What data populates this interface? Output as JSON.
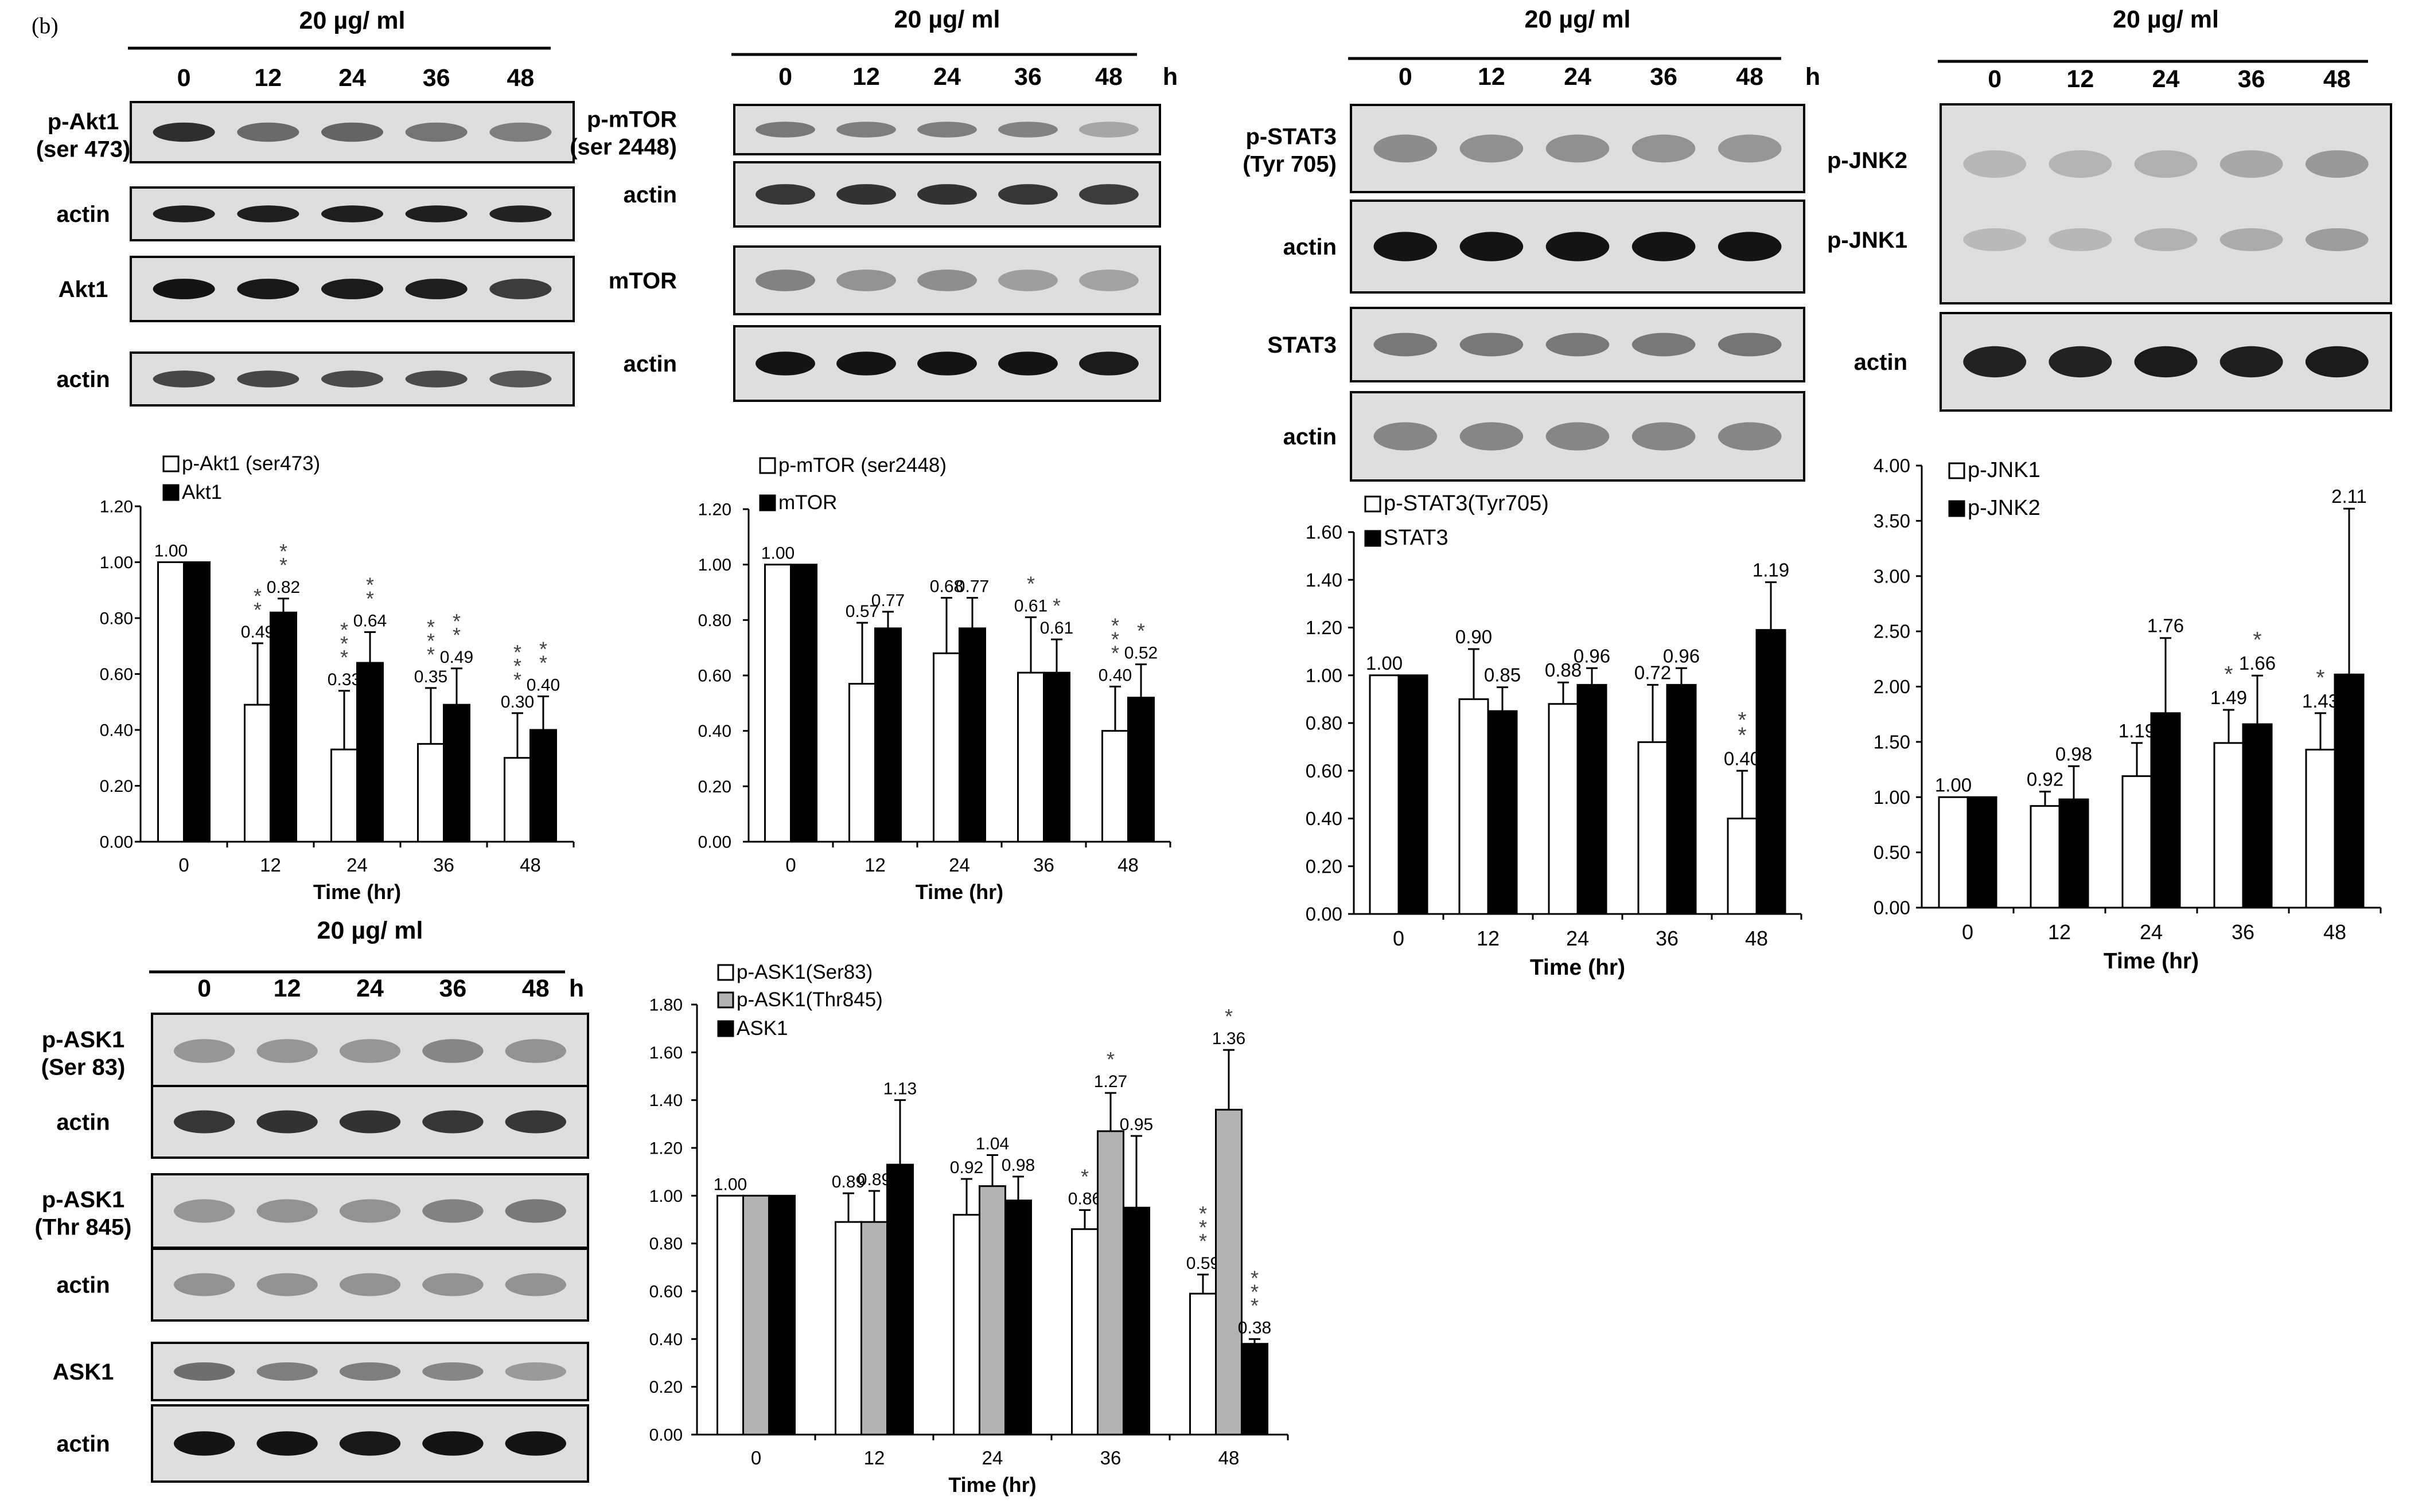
{
  "figure_label": "(b)",
  "conc_label": "20 µg/ ml",
  "hour_unit": "h",
  "lanes": [
    "0",
    "12",
    "24",
    "36",
    "48"
  ],
  "blot_groups": [
    {
      "id": "akt",
      "rows": [
        {
          "label_lines": [
            "p-Akt1",
            "(ser 473)"
          ],
          "intensity": [
            0.82,
            0.52,
            0.55,
            0.47,
            0.42
          ]
        },
        {
          "label_lines": [
            "actin"
          ],
          "intensity": [
            0.9,
            0.9,
            0.9,
            0.9,
            0.88
          ]
        },
        {
          "label_lines": [
            "Akt1"
          ],
          "intensity": [
            0.95,
            0.93,
            0.92,
            0.9,
            0.75
          ]
        },
        {
          "label_lines": [
            "actin"
          ],
          "intensity": [
            0.7,
            0.7,
            0.68,
            0.68,
            0.62
          ]
        }
      ]
    },
    {
      "id": "mtor",
      "rows": [
        {
          "label_lines": [
            "p-mTOR",
            "(ser 2448)"
          ],
          "intensity": [
            0.45,
            0.42,
            0.42,
            0.4,
            0.22
          ]
        },
        {
          "label_lines": [
            "actin"
          ],
          "intensity": [
            0.78,
            0.8,
            0.8,
            0.78,
            0.75
          ]
        },
        {
          "label_lines": [
            "mTOR"
          ],
          "intensity": [
            0.4,
            0.32,
            0.34,
            0.26,
            0.24
          ]
        },
        {
          "label_lines": [
            "actin"
          ],
          "intensity": [
            0.95,
            0.95,
            0.95,
            0.95,
            0.92
          ]
        }
      ]
    },
    {
      "id": "stat3",
      "rows": [
        {
          "label_lines": [
            "p-STAT3",
            "(Tyr 705)"
          ],
          "intensity": [
            0.35,
            0.33,
            0.33,
            0.32,
            0.3
          ]
        },
        {
          "label_lines": [
            "actin"
          ],
          "intensity": [
            0.95,
            0.95,
            0.95,
            0.95,
            0.95
          ]
        },
        {
          "label_lines": [
            "STAT3"
          ],
          "intensity": [
            0.45,
            0.45,
            0.45,
            0.45,
            0.47
          ]
        },
        {
          "label_lines": [
            "actin"
          ],
          "intensity": [
            0.38,
            0.38,
            0.38,
            0.38,
            0.38
          ]
        }
      ]
    },
    {
      "id": "jnk",
      "rows": [
        {
          "label_lines": [
            "p-JNK2",
            "p-JNK1"
          ],
          "intensity": [
            0.2,
            0.22,
            0.25,
            0.3,
            0.4
          ]
        },
        {
          "label_lines": [
            "actin"
          ],
          "intensity": [
            0.88,
            0.88,
            0.92,
            0.9,
            0.92
          ]
        }
      ]
    },
    {
      "id": "ask1",
      "rows": [
        {
          "label_lines": [
            "p-ASK1",
            "(Ser 83)"
          ],
          "intensity": [
            0.3,
            0.3,
            0.3,
            0.38,
            0.32
          ]
        },
        {
          "label_lines": [
            "actin"
          ],
          "intensity": [
            0.78,
            0.8,
            0.8,
            0.78,
            0.78
          ]
        },
        {
          "label_lines": [
            "p-ASK1",
            "(Thr 845)"
          ],
          "intensity": [
            0.3,
            0.32,
            0.32,
            0.4,
            0.45
          ]
        },
        {
          "label_lines": [
            "actin"
          ],
          "intensity": [
            0.32,
            0.32,
            0.32,
            0.32,
            0.32
          ]
        },
        {
          "label_lines": [
            "ASK1"
          ],
          "intensity": [
            0.5,
            0.42,
            0.42,
            0.38,
            0.28
          ]
        },
        {
          "label_lines": [
            "actin"
          ],
          "intensity": [
            0.95,
            0.95,
            0.93,
            0.95,
            0.95
          ]
        }
      ]
    }
  ],
  "chart_data": [
    {
      "id": "akt",
      "type": "bar",
      "categories": [
        "0",
        "12",
        "24",
        "36",
        "48"
      ],
      "xlabel": "Time (hr)",
      "ylabel": "",
      "ylim": [
        0,
        1.2
      ],
      "ytick_step": 0.2,
      "ytick_decimals": 2,
      "legend": "top-left",
      "series": [
        {
          "name": "p-Akt1 (ser473)",
          "color": "#ffffff",
          "values": [
            1.0,
            0.49,
            0.33,
            0.35,
            0.3
          ],
          "errors": [
            0,
            0.22,
            0.21,
            0.2,
            0.16
          ],
          "labels": [
            "1.00",
            "0.49",
            "0.33",
            "0.35",
            "0.30"
          ],
          "stars": [
            "",
            "**",
            "***",
            "***",
            "***"
          ]
        },
        {
          "name": "Akt1",
          "color": "#000000",
          "values": [
            1.0,
            0.82,
            0.64,
            0.49,
            0.4
          ],
          "errors": [
            0,
            0.05,
            0.11,
            0.13,
            0.12
          ],
          "labels": [
            "",
            "0.82",
            "0.64",
            "0.49",
            "0.40"
          ],
          "stars": [
            "",
            "**",
            "**",
            "**",
            "**"
          ]
        }
      ]
    },
    {
      "id": "mtor",
      "type": "bar",
      "categories": [
        "0",
        "12",
        "24",
        "36",
        "48"
      ],
      "xlabel": "Time (hr)",
      "ylabel": "",
      "ylim": [
        0,
        1.2
      ],
      "ytick_step": 0.2,
      "ytick_decimals": 2,
      "legend": "top-left",
      "series": [
        {
          "name": "p-mTOR (ser2448)",
          "color": "#ffffff",
          "values": [
            1.0,
            0.57,
            0.68,
            0.61,
            0.4
          ],
          "errors": [
            0,
            0.22,
            0.2,
            0.2,
            0.16
          ],
          "labels": [
            "1.00",
            "0.57",
            "0.68",
            "0.61",
            "0.40"
          ],
          "stars": [
            "",
            "",
            "",
            "*",
            "***"
          ]
        },
        {
          "name": "mTOR",
          "color": "#000000",
          "values": [
            1.0,
            0.77,
            0.77,
            0.61,
            0.52
          ],
          "errors": [
            0,
            0.06,
            0.11,
            0.12,
            0.12
          ],
          "labels": [
            "",
            "0.77",
            "0.77",
            "0.61",
            "0.52"
          ],
          "stars": [
            "",
            "",
            "",
            "*",
            "*"
          ]
        }
      ]
    },
    {
      "id": "stat3",
      "type": "bar",
      "categories": [
        "0",
        "12",
        "24",
        "36",
        "48"
      ],
      "xlabel": "Time (hr)",
      "ylabel": "",
      "ylim": [
        0,
        1.6
      ],
      "ytick_step": 0.2,
      "ytick_decimals": 2,
      "legend": "top-left",
      "series": [
        {
          "name": "p-STAT3(Tyr705)",
          "color": "#ffffff",
          "values": [
            1.0,
            0.9,
            0.88,
            0.72,
            0.4
          ],
          "errors": [
            0,
            0.21,
            0.09,
            0.24,
            0.2
          ],
          "labels": [
            "1.00",
            "0.90",
            "0.88",
            "0.72",
            "0.40"
          ],
          "stars": [
            "",
            "",
            "",
            "",
            "**"
          ]
        },
        {
          "name": "STAT3",
          "color": "#000000",
          "values": [
            1.0,
            0.85,
            0.96,
            0.96,
            1.19
          ],
          "errors": [
            0,
            0.1,
            0.07,
            0.07,
            0.2
          ],
          "labels": [
            "",
            "0.85",
            "0.96",
            "0.96",
            "1.19"
          ],
          "stars": [
            "",
            "",
            "",
            "",
            ""
          ]
        }
      ]
    },
    {
      "id": "jnk",
      "type": "bar",
      "categories": [
        "0",
        "12",
        "24",
        "36",
        "48"
      ],
      "xlabel": "Time (hr)",
      "ylabel": "",
      "ylim": [
        0,
        4.0
      ],
      "ytick_step": 0.5,
      "ytick_decimals": 2,
      "legend": "top-left",
      "series": [
        {
          "name": "p-JNK1",
          "color": "#ffffff",
          "values": [
            1.0,
            0.92,
            1.19,
            1.49,
            1.43
          ],
          "errors": [
            0,
            0.13,
            0.3,
            0.3,
            0.33
          ],
          "labels": [
            "1.00",
            "0.92",
            "1.19",
            "1.49",
            "1.43"
          ],
          "stars": [
            "",
            "",
            "",
            "*",
            "*"
          ]
        },
        {
          "name": "p-JNK2",
          "color": "#000000",
          "values": [
            1.0,
            0.98,
            1.76,
            1.66,
            2.11
          ],
          "errors": [
            0,
            0.3,
            0.68,
            0.44,
            1.5
          ],
          "labels": [
            "",
            "0.98",
            "1.76",
            "1.66",
            "2.11"
          ],
          "stars": [
            "",
            "",
            "",
            "*",
            ""
          ]
        }
      ]
    },
    {
      "id": "ask1",
      "type": "bar",
      "categories": [
        "0",
        "12",
        "24",
        "36",
        "48"
      ],
      "xlabel": "Time (hr)",
      "ylabel": "",
      "ylim": [
        0,
        1.8
      ],
      "ytick_step": 0.2,
      "ytick_decimals": 2,
      "legend": "top-left",
      "series": [
        {
          "name": "p-ASK1(Ser83)",
          "color": "#ffffff",
          "values": [
            1.0,
            0.89,
            0.92,
            0.86,
            0.59
          ],
          "errors": [
            0,
            0.12,
            0.15,
            0.08,
            0.08
          ],
          "labels": [
            "1.00",
            "0.89",
            "0.92",
            "0.86",
            "0.59"
          ],
          "stars": [
            "",
            "",
            "",
            "*",
            "***"
          ]
        },
        {
          "name": "p-ASK1(Thr845)",
          "color": "#b3b3b3",
          "values": [
            1.0,
            0.89,
            1.04,
            1.27,
            1.36
          ],
          "errors": [
            0,
            0.13,
            0.13,
            0.16,
            0.25
          ],
          "labels": [
            "",
            "0.89",
            "1.04",
            "1.27",
            "1.36"
          ],
          "stars": [
            "",
            "",
            "",
            "*",
            "*"
          ]
        },
        {
          "name": "ASK1",
          "color": "#000000",
          "values": [
            1.0,
            1.13,
            0.98,
            0.95,
            0.38
          ],
          "errors": [
            0,
            0.27,
            0.1,
            0.3,
            0.02
          ],
          "labels": [
            "",
            "1.13",
            "0.98",
            "0.95",
            "0.38"
          ],
          "stars": [
            "",
            "",
            "",
            "",
            "***"
          ]
        }
      ]
    }
  ]
}
